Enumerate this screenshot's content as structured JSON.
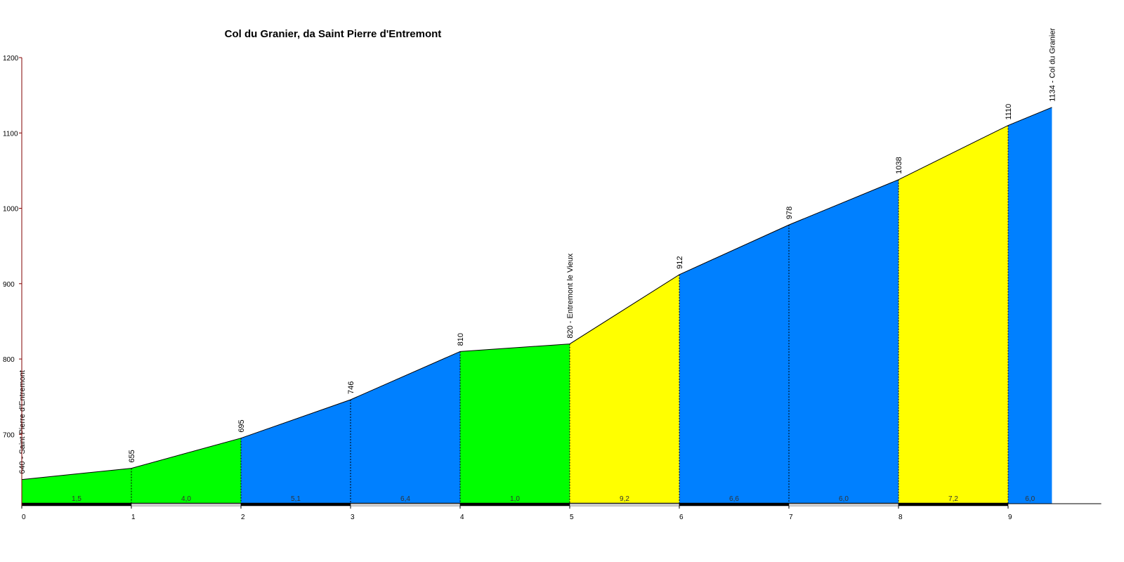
{
  "chart_data": {
    "type": "area",
    "title": "Col du Granier, da Saint Pierre d'Entremont",
    "x": [
      0,
      1,
      2,
      3,
      4,
      5,
      6,
      7,
      8,
      9,
      9.4
    ],
    "values": [
      640,
      655,
      695,
      746,
      810,
      820,
      912,
      978,
      1038,
      1110,
      1134
    ],
    "value_labels": [
      "640 - Saint Pierre d'Entremont",
      "655",
      "695",
      "746",
      "810",
      "820 - Entremont le Vieux",
      "912",
      "978",
      "1038",
      "1110",
      "1134 - Col du Granier"
    ],
    "segments": {
      "values": [
        1.5,
        4.0,
        5.1,
        6.4,
        1.0,
        9.2,
        6.6,
        6.0,
        7.2,
        6.0
      ],
      "value_labels": [
        "1,5",
        "4,0",
        "5,1",
        "6,4",
        "1,0",
        "9,2",
        "6,6",
        "6,0",
        "7,2",
        "6,0"
      ],
      "colors": [
        "#00ff00",
        "#00ff00",
        "#0080ff",
        "#0080ff",
        "#00ff00",
        "#ffff00",
        "#0080ff",
        "#0080ff",
        "#ffff00",
        "#0080ff"
      ]
    },
    "xlim": [
      0,
      9.85
    ],
    "ylim": [
      608,
      1200
    ],
    "xticks": [
      0,
      1,
      2,
      3,
      4,
      5,
      6,
      7,
      8,
      9
    ],
    "yticks": [
      700,
      800,
      900,
      1000,
      1100,
      1200
    ]
  }
}
